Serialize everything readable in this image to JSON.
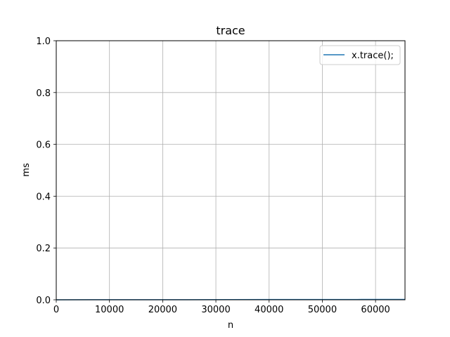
{
  "chart_data": {
    "type": "line",
    "title": "trace",
    "xlabel": "n",
    "ylabel": "ms",
    "xlim": [
      0,
      65536
    ],
    "ylim": [
      0,
      1.0
    ],
    "xticks": [
      0,
      10000,
      20000,
      30000,
      40000,
      50000,
      60000
    ],
    "xtick_labels": [
      "0",
      "10000",
      "20000",
      "30000",
      "40000",
      "50000",
      "60000"
    ],
    "yticks": [
      0.0,
      0.2,
      0.4,
      0.6,
      0.8,
      1.0
    ],
    "ytick_labels": [
      "0.0",
      "0.2",
      "0.4",
      "0.6",
      "0.8",
      "1.0"
    ],
    "grid": true,
    "legend_position": "top-right",
    "series": [
      {
        "name": "x.trace();",
        "color": "#1f77b4",
        "x": [
          0,
          8192,
          16384,
          24576,
          32768,
          40960,
          49152,
          57344,
          65536
        ],
        "y": [
          0.0001,
          0.0002,
          0.0004,
          0.0005,
          0.0007,
          0.0009,
          0.001,
          0.0012,
          0.0014
        ]
      }
    ]
  }
}
